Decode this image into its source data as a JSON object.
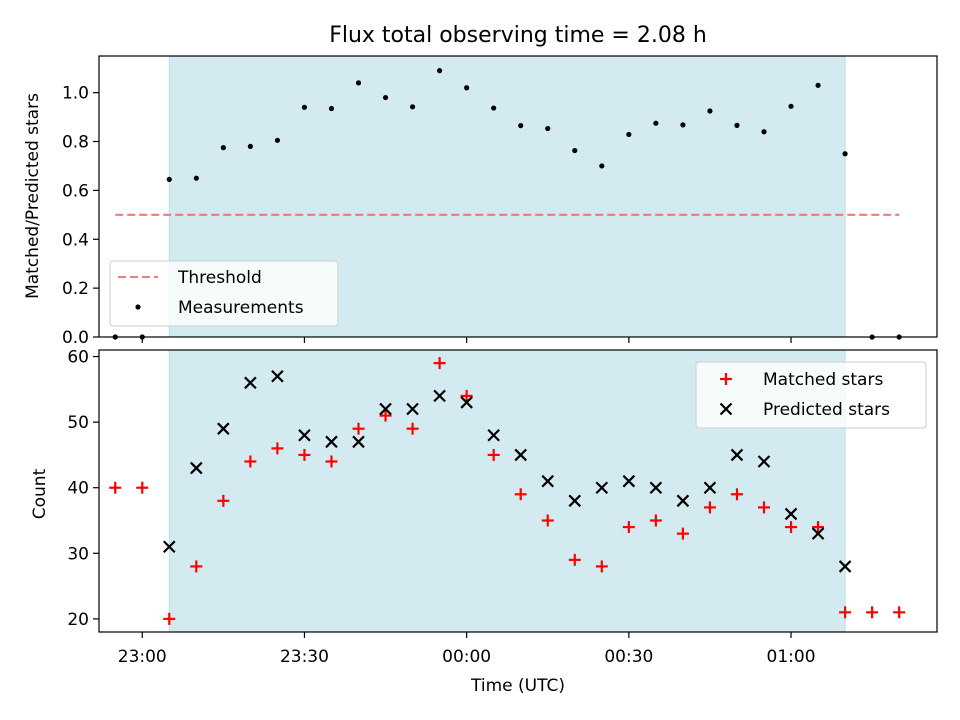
{
  "chart_data": [
    {
      "type": "scatter",
      "title": "Flux total observing time = 2.08 h",
      "ylabel": "Matched/Predicted stars",
      "xlabel": "",
      "xlim": [
        "22:52",
        "01:27"
      ],
      "ylim": [
        0,
        1.15
      ],
      "yticks": [
        0.0,
        0.2,
        0.4,
        0.6,
        0.8,
        1.0
      ],
      "ytick_labels": [
        "0.0",
        "0.2",
        "0.4",
        "0.6",
        "0.8",
        "1.0"
      ],
      "shaded_region": [
        "23:05",
        "01:10"
      ],
      "shaded_color": "#d3ebf0",
      "threshold": {
        "name": "Threshold",
        "value": 0.5,
        "x_range": [
          "22:55",
          "01:20"
        ],
        "color": "#f07a7a"
      },
      "legend_position": "bottom-left",
      "series": [
        {
          "name": "Measurements",
          "marker": "dot",
          "color": "#000000",
          "x": [
            "22:55",
            "23:00",
            "23:05",
            "23:10",
            "23:15",
            "23:20",
            "23:25",
            "23:30",
            "23:35",
            "23:40",
            "23:45",
            "23:50",
            "23:55",
            "00:00",
            "00:05",
            "00:10",
            "00:15",
            "00:20",
            "00:25",
            "00:30",
            "00:35",
            "00:40",
            "00:45",
            "00:50",
            "00:55",
            "01:00",
            "01:05",
            "01:10",
            "01:15",
            "01:20"
          ],
          "values": [
            0.0,
            0.0,
            0.645,
            0.65,
            0.775,
            0.78,
            0.805,
            0.94,
            0.935,
            1.04,
            0.98,
            0.942,
            1.09,
            1.02,
            0.937,
            0.865,
            0.853,
            0.763,
            0.7,
            0.829,
            0.875,
            0.868,
            0.925,
            0.866,
            0.84,
            0.944,
            1.03,
            0.75,
            0.0,
            0.0
          ]
        }
      ]
    },
    {
      "type": "scatter",
      "title": "",
      "ylabel": "Count",
      "xlabel": "Time (UTC)",
      "xlim": [
        "22:52",
        "01:27"
      ],
      "ylim": [
        18,
        61
      ],
      "yticks": [
        20,
        30,
        40,
        50,
        60
      ],
      "ytick_labels": [
        "20",
        "30",
        "40",
        "50",
        "60"
      ],
      "xticks": [
        "23:00",
        "23:30",
        "00:00",
        "00:30",
        "01:00"
      ],
      "xtick_labels": [
        "23:00",
        "23:30",
        "00:00",
        "00:30",
        "01:00"
      ],
      "shaded_region": [
        "23:05",
        "01:10"
      ],
      "shaded_color": "#d3ebf0",
      "legend_position": "top-right",
      "series": [
        {
          "name": "Matched stars",
          "marker": "plus",
          "color": "#ff0000",
          "x": [
            "22:55",
            "23:00",
            "23:05",
            "23:10",
            "23:15",
            "23:20",
            "23:25",
            "23:30",
            "23:35",
            "23:40",
            "23:45",
            "23:50",
            "23:55",
            "00:00",
            "00:05",
            "00:10",
            "00:15",
            "00:20",
            "00:25",
            "00:30",
            "00:35",
            "00:40",
            "00:45",
            "00:50",
            "00:55",
            "01:00",
            "01:05",
            "01:10",
            "01:15",
            "01:20"
          ],
          "values": [
            40,
            40,
            20,
            28,
            38,
            44,
            46,
            45,
            44,
            49,
            51,
            49,
            59,
            54,
            45,
            39,
            35,
            29,
            28,
            34,
            35,
            33,
            37,
            39,
            37,
            34,
            34,
            21,
            21,
            21
          ]
        },
        {
          "name": "Predicted stars",
          "marker": "x",
          "color": "#000000",
          "x": [
            "23:05",
            "23:10",
            "23:15",
            "23:20",
            "23:25",
            "23:30",
            "23:35",
            "23:40",
            "23:45",
            "23:50",
            "23:55",
            "00:00",
            "00:05",
            "00:10",
            "00:15",
            "00:20",
            "00:25",
            "00:30",
            "00:35",
            "00:40",
            "00:45",
            "00:50",
            "00:55",
            "01:00",
            "01:05",
            "01:10"
          ],
          "values": [
            31,
            43,
            49,
            56,
            57,
            48,
            47,
            47,
            52,
            52,
            54,
            53,
            48,
            45,
            41,
            38,
            40,
            41,
            40,
            38,
            40,
            45,
            44,
            36,
            33,
            28
          ]
        }
      ]
    }
  ]
}
